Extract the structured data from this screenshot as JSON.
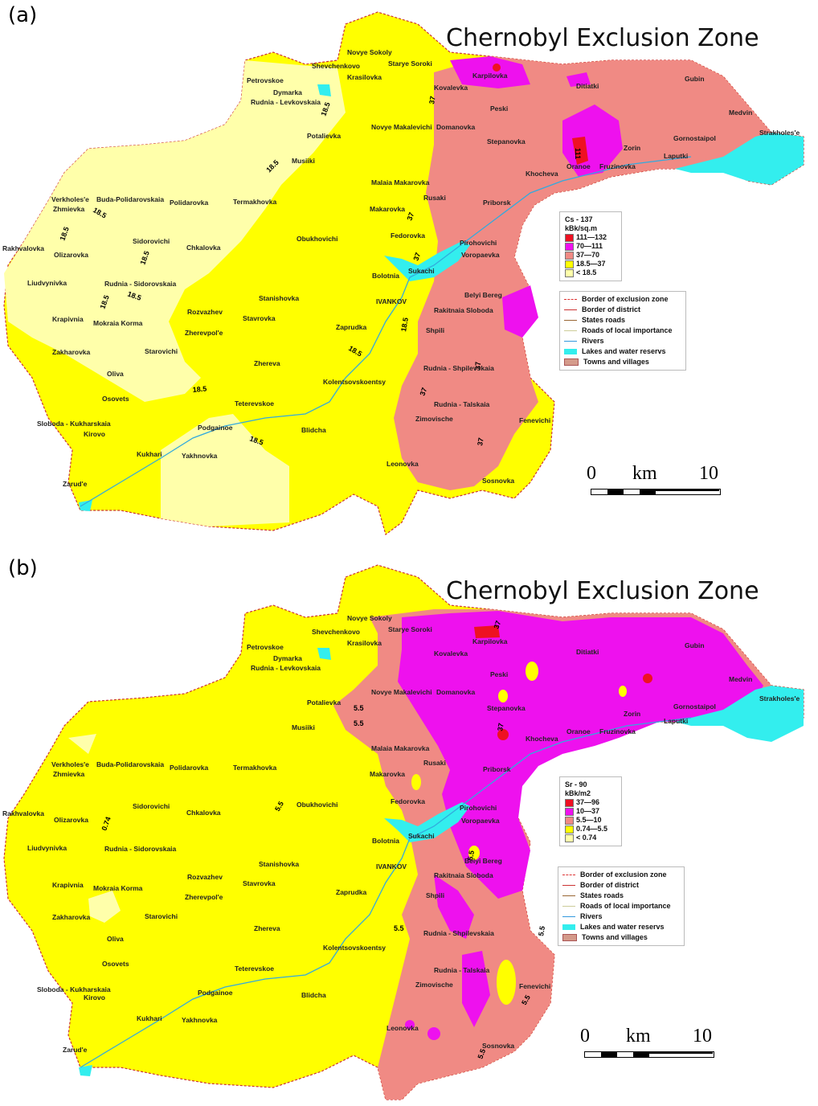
{
  "title": "Chernobyl Exclusion Zone",
  "colors": {
    "red": "#ee1122",
    "magenta": "#ee11ee",
    "salmon": "#f08a84",
    "yellow": "#ffff00",
    "pale_yellow": "#ffffaa",
    "water": "#33eeee",
    "towns": "#d49a8a"
  },
  "line_legend": [
    {
      "label": "Border of exclusion zone",
      "style": "dashed-red"
    },
    {
      "label": "Border of district",
      "style": "red-line"
    },
    {
      "label": "States roads",
      "style": "brown-line"
    },
    {
      "label": "Roads of local importance",
      "style": "thin-line"
    },
    {
      "label": "Rivers",
      "style": "blue-line"
    },
    {
      "label": "Lakes and water reservs",
      "style": "cyan-box"
    },
    {
      "label": "Towns and villages",
      "style": "hatched-box"
    }
  ],
  "scalebar": {
    "start": "0",
    "unit": "km",
    "end": "10"
  },
  "panels": [
    {
      "label": "(a)",
      "legend_title": "Cs - 137",
      "legend_unit": "kBk/sq.m",
      "classes": [
        {
          "range": "111—132",
          "color": "#ee1122"
        },
        {
          "range": "70—111",
          "color": "#ee11ee"
        },
        {
          "range": "37—70",
          "color": "#f08a84"
        },
        {
          "range": "18.5—37",
          "color": "#ffff00"
        },
        {
          "range": "< 18.5",
          "color": "#ffffaa"
        }
      ],
      "contour_labels": [
        "18.5",
        "18.5",
        "18.5",
        "18.5",
        "18.5",
        "18.5",
        "18.5",
        "18.5",
        "18.5",
        "18.5",
        "18.5",
        "37",
        "37",
        "37",
        "37",
        "37",
        "37",
        "111"
      ]
    },
    {
      "label": "(b)",
      "legend_title": "Sr - 90",
      "legend_unit": "kBk/m2",
      "classes": [
        {
          "range": "37—96",
          "color": "#ee1122"
        },
        {
          "range": "10—37",
          "color": "#ee11ee"
        },
        {
          "range": "5.5—10",
          "color": "#f08a84"
        },
        {
          "range": "0.74—5.5",
          "color": "#ffff00"
        },
        {
          "range": "< 0.74",
          "color": "#ffffaa"
        }
      ],
      "contour_labels": [
        "5.5",
        "5.5",
        "5.5",
        "5.5",
        "5.5",
        "5.5",
        "5.5",
        "5.5",
        "0.74",
        "37",
        "37"
      ]
    }
  ],
  "places": [
    "Novye Sokoly",
    "Starye Soroki",
    "Shevchenkovo",
    "Krasilovka",
    "Karpilovka",
    "Petrovskoe",
    "Kovalevka",
    "Ditiatki",
    "Gubin",
    "Dymarka",
    "Rudnia - Levkovskaia",
    "Peski",
    "Medvin",
    "Strakholes'e",
    "Novye Makalevichi",
    "Domanovka",
    "Gornostaipol",
    "Potalievka",
    "Stepanovka",
    "Zorin",
    "Laputki",
    "Musiiki",
    "Oranoe",
    "Fruzinovka",
    "Khocheva",
    "Malaia Makarovka",
    "Rusaki",
    "Verkholes'e",
    "Buda-Polidarovskaia",
    "Zhmievka",
    "Polidarovka",
    "Termakhovka",
    "Makarovka",
    "Priborsk",
    "Fedorovka",
    "Sidorovichi",
    "Obukhovichi",
    "Pirohovichi",
    "Rakhvalovka",
    "Olizarovka",
    "Chkalovka",
    "Voropaevka",
    "Sukachi",
    "Bolotnia",
    "Liudvynivka",
    "Rudnia - Sidorovskaia",
    "Stanishovka",
    "Belyi Bereg",
    "IVANKOV",
    "Rakitnaia Sloboda",
    "Krapivnia",
    "Rozvazhev",
    "Mokraia Korma",
    "Stavrovka",
    "Zherevpol'e",
    "Zaprudka",
    "Shpili",
    "Zakharovka",
    "Starovichi",
    "Zhereva",
    "Rudnia - Shpilevskaia",
    "Oliva",
    "Kolentsovskoentsy",
    "Osovets",
    "Teterevskoe",
    "Rudnia - Talskaia",
    "Sloboda - Kukharskaia",
    "Zimovische",
    "Fenevichi",
    "Kirovo",
    "Podgainoe",
    "Blidcha",
    "Kukhari",
    "Yakhnovka",
    "Leonovka",
    "Sosnovka",
    "Zarud'e"
  ],
  "place_labels": {
    "a": [
      "Novye Sokoly",
      "Starye Soroki",
      "Shevchenkovo",
      "Krasilovka",
      "Karpilovka",
      "Petrovskoe",
      "Kovalevka",
      "Ditiatki",
      "Gubin",
      "Dymarka",
      "Rudnia - Levkovskaia",
      "Peski",
      "Medvin",
      "Strakholes'e",
      "Novye Makalevichi",
      "Domanovka",
      "Gornostaipol",
      "Potalievka",
      "Stepanovka",
      "Zorin",
      "Laputki",
      "Musiiki",
      "Oranoe",
      "Fruzinovka",
      "Khocheva",
      "Malaia Makarovka",
      "Rusaki",
      "Verkholes'e",
      "Buda-Polidarovskaia",
      "Zhmievka",
      "Polidarovka",
      "Termakhovka",
      "Makarovka",
      "Priborsk",
      "Fedorovka",
      "Sidorovichi",
      "Obukhovichi",
      "Pirohovichi",
      "Rakhvalovka",
      "Olizarovka",
      "Chkalovka",
      "Voropaevka",
      "Sukachi",
      "Bolotnia",
      "Liudvynivka",
      "Rudnia - Sidorovskaia",
      "Stanishovka",
      "Belyi Bereg",
      "IVANKOV",
      "Rakitnaia Sloboda",
      "Krapivnia",
      "Rozvazhev",
      "Mokraia Korma",
      "Stavrovka",
      "Zherevpol'e",
      "Zaprudka",
      "Shpili",
      "Zakharovka",
      "Starovichi",
      "Zhereva",
      "Rudnia - Shpilevskaia",
      "Oliva",
      "Kolentsovskoentsy",
      "Osovets",
      "Teterevskoe",
      "Rudnia - Talskaia",
      "Sloboda - Kukharskaia",
      "Zimovische",
      "Fenevichi",
      "Kirovo",
      "Podgainoe",
      "Blidcha",
      "Kukhari",
      "Yakhnovka",
      "Leonovka",
      "Sosnovka",
      "Zarud'e"
    ],
    "b": [
      "Novye Sokoly",
      "Starye Soroki",
      "Shevchenkovo",
      "Krasilovka",
      "Karpilovka",
      "Petrovskoe",
      "Kovalevka",
      "Ditiatki",
      "Gubin",
      "Dymarka",
      "Rudnia - Levkovskaia",
      "Peski",
      "Medvin",
      "Strakholes'e",
      "Novye Makalevichi",
      "Domanovka",
      "Gornostaipol",
      "Potalievka",
      "Stepanovka",
      "Zorin",
      "Laputki",
      "Musiiki",
      "Oranoe",
      "Fruzinovka",
      "Khocheva",
      "Malaia Makarovka",
      "Rusaki",
      "Verkholes'e",
      "Buda-Polidarovskaia",
      "Zhmievka",
      "Polidarovka",
      "Termakhovka",
      "Makarovka",
      "Priborsk",
      "Fedorovka",
      "Sidorovichi",
      "Obukhovichi",
      "Pirohovichi",
      "Rakhvalovka",
      "Olizarovka",
      "Chkalovka",
      "Voropaevka",
      "Sukachi",
      "Bolotnia",
      "Liudvynivka",
      "Rudnia - Sidorovskaia",
      "Stanishovka",
      "Belyi Bereg",
      "IVANKOV",
      "Rakitnaia Sloboda",
      "Krapivnia",
      "Rozvazhev",
      "Mokraia Korma",
      "Stavrovka",
      "Zherevpol'e",
      "Zaprudka",
      "Shpili",
      "Zakharovka",
      "Starovichi",
      "Zhereva",
      "Rudnia - Shpilevskaia",
      "Oliva",
      "Kolentsovskoentsy",
      "Osovets",
      "Teterevskoe",
      "Rudnia - Talskaia",
      "Sloboda - Kukharskaia",
      "Zimovische",
      "Fenevichi",
      "Kirovo",
      "Podgainoe",
      "Blidcha",
      "Kukhari",
      "Yakhnovka",
      "Leonovka",
      "Sosnovka",
      "Zarud'e"
    ]
  }
}
